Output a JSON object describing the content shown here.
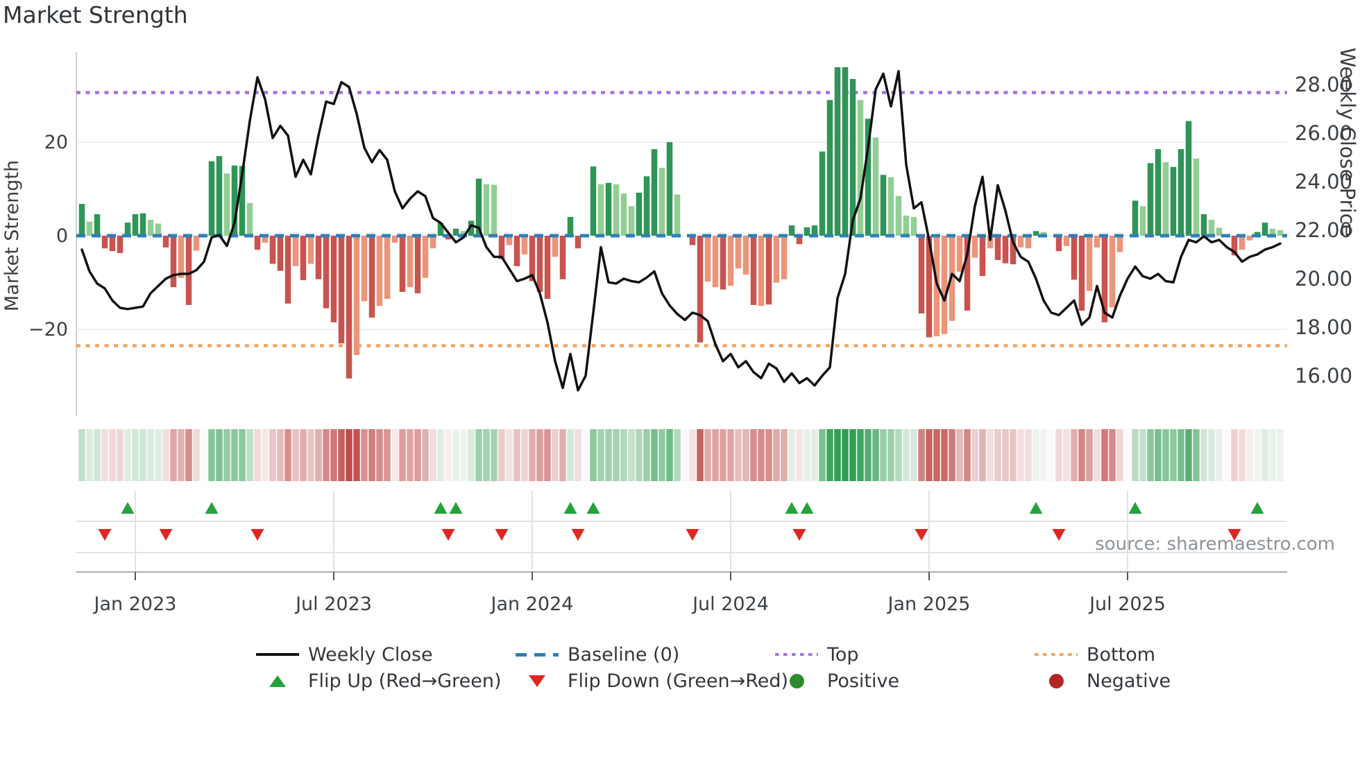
{
  "title": "Market Strength",
  "source": "source: sharemaestro.com",
  "colors": {
    "bar_dark_green": "#2e9556",
    "bar_light_green": "#92ce94",
    "bar_dark_red": "#c9534f",
    "bar_salmon": "#ea9579",
    "baseline_blue": "#2f7fb6",
    "top_purple": "#a76fe2",
    "bottom_orange": "#f2a55f",
    "close_line": "#111111",
    "flip_up_green": "#26a23d",
    "flip_down_red": "#e12622",
    "positive_dot": "#2c8a2c",
    "negative_dot": "#b22623",
    "grid": "#e9ecf2",
    "grid_light": "#dfe2e7",
    "axis_line": "#a6adb5",
    "tick_text": "#3b4046",
    "heat_green_max": "#2f9e53",
    "heat_red_max": "#bf4a48"
  },
  "legend": {
    "row1": [
      {
        "swatch": "line-black",
        "label": "Weekly Close"
      },
      {
        "swatch": "dash-blue",
        "label": "Baseline (0)"
      },
      {
        "swatch": "dot-purple",
        "label": "Top"
      },
      {
        "swatch": "dot-orange",
        "label": "Bottom"
      }
    ],
    "row2": [
      {
        "swatch": "tri-up-green",
        "label": "Flip Up (Red→Green)"
      },
      {
        "swatch": "tri-down-red",
        "label": "Flip Down (Green→Red)"
      },
      {
        "swatch": "circle-green",
        "label": "Positive"
      },
      {
        "swatch": "circle-darkred",
        "label": "Negative"
      }
    ]
  },
  "chart_data": {
    "type": "combo_bar_line",
    "title": "Market Strength",
    "n_weeks": 158,
    "x_ticks": [
      {
        "week": 7,
        "label": "Jan 2023"
      },
      {
        "week": 33,
        "label": "Jul 2023"
      },
      {
        "week": 59,
        "label": "Jan 2024"
      },
      {
        "week": 85,
        "label": "Jul 2024"
      },
      {
        "week": 111,
        "label": "Jan 2025"
      },
      {
        "week": 137,
        "label": "Jul 2025"
      }
    ],
    "left_axis": {
      "label": "Market Strength",
      "tick_values": [
        20,
        0,
        -20
      ],
      "tick_labels": [
        "20",
        "0",
        "−20"
      ],
      "range": [
        -33,
        39
      ]
    },
    "right_axis": {
      "label": "Weekly Close Price",
      "tick_values": [
        28,
        26,
        24,
        22,
        20,
        18,
        16
      ],
      "tick_labels": [
        "28.00",
        "26.00",
        "24.00",
        "22.00",
        "20.00",
        "18.00",
        "16.00"
      ],
      "range": [
        14.9,
        29.5
      ]
    },
    "reference_lines": {
      "baseline": 0,
      "top_strength": 30.6,
      "bottom_strength": -23.5
    },
    "strength_bars": {
      "values": [
        6.8,
        3,
        4.6,
        -2.7,
        -3.3,
        -3.7,
        2.8,
        4.6,
        4.8,
        3.4,
        2.6,
        -2.5,
        -11,
        -9,
        -14.8,
        -3.2,
        0,
        15.9,
        17,
        13.3,
        15,
        14.9,
        7,
        -3,
        -1.5,
        -6,
        -7.5,
        -14.5,
        -6.5,
        -9.5,
        -6,
        -9.3,
        -15.5,
        -18.5,
        -23,
        -30.5,
        -25.5,
        -14,
        -17.5,
        -15,
        -13.5,
        -1.5,
        -12,
        -11,
        -12.3,
        -9,
        -2.7,
        2.7,
        -0.8,
        1.5,
        1,
        3.2,
        12.2,
        11,
        10.9,
        -5,
        -2,
        -6.5,
        -4,
        -9.7,
        -12,
        -13.5,
        -4.5,
        -9.3,
        4,
        -2.7,
        0,
        14.8,
        11,
        11.3,
        11,
        9,
        6.3,
        9.2,
        12.7,
        18.5,
        14.5,
        20,
        8.8,
        0,
        -2,
        -22.8,
        -9.8,
        -11,
        -11.5,
        -10.7,
        -7,
        -8.3,
        -14.8,
        -15,
        -14.7,
        -10,
        -9.3,
        2.2,
        -1.8,
        1.8,
        2.2,
        18,
        29,
        36,
        36,
        33.5,
        29,
        25,
        21,
        13,
        12.5,
        8.5,
        4.3,
        4,
        -16.6,
        -21.7,
        -21.5,
        -21,
        -18.2,
        -7.7,
        -16,
        -4.7,
        -8.6,
        -2.7,
        -5.2,
        -5.9,
        -6.1,
        -2.5,
        -2.7,
        1,
        0.8,
        0,
        -3.3,
        -2.2,
        -9.4,
        -16,
        -11.8,
        -2.5,
        -18.5,
        -15.3,
        -3.5,
        0,
        7.5,
        6.3,
        15.5,
        18.5,
        15.7,
        14.7,
        18.5,
        24.5,
        16.5,
        4.6,
        3.4,
        1.7,
        0,
        -4.2,
        -3,
        -1,
        0.8,
        2.8,
        1.5,
        1.2
      ],
      "shades": [
        "dg",
        "lg",
        "dg",
        "dr",
        "dr",
        "dr",
        "dg",
        "dg",
        "dg",
        "lg",
        "lg",
        "dr",
        "dr",
        "sr",
        "dr",
        "sr",
        "lg",
        "dg",
        "dg",
        "lg",
        "dg",
        "dg",
        "lg",
        "dr",
        "sr",
        "dr",
        "dr",
        "dr",
        "sr",
        "dr",
        "sr",
        "dr",
        "dr",
        "dr",
        "dr",
        "dr",
        "sr",
        "sr",
        "dr",
        "sr",
        "sr",
        "sr",
        "dr",
        "sr",
        "dr",
        "sr",
        "sr",
        "dg",
        "dr",
        "dg",
        "lg",
        "dg",
        "dg",
        "lg",
        "lg",
        "dr",
        "sr",
        "dr",
        "sr",
        "dr",
        "dr",
        "dr",
        "sr",
        "dr",
        "dg",
        "dr",
        "lg",
        "dg",
        "lg",
        "dg",
        "lg",
        "lg",
        "lg",
        "dg",
        "dg",
        "dg",
        "lg",
        "dg",
        "lg",
        "lg",
        "dr",
        "dr",
        "sr",
        "sr",
        "dr",
        "sr",
        "sr",
        "sr",
        "dr",
        "sr",
        "dr",
        "sr",
        "sr",
        "dg",
        "dr",
        "dg",
        "dg",
        "dg",
        "dg",
        "dg",
        "dg",
        "dg",
        "lg",
        "dg",
        "lg",
        "dg",
        "lg",
        "lg",
        "lg",
        "lg",
        "dr",
        "dr",
        "sr",
        "sr",
        "sr",
        "sr",
        "dr",
        "sr",
        "dr",
        "sr",
        "dr",
        "dr",
        "dr",
        "sr",
        "sr",
        "dg",
        "lg",
        "lg",
        "dr",
        "sr",
        "dr",
        "dr",
        "sr",
        "sr",
        "dr",
        "sr",
        "sr",
        "lg",
        "dg",
        "lg",
        "dg",
        "dg",
        "lg",
        "dg",
        "dg",
        "dg",
        "lg",
        "dg",
        "lg",
        "lg",
        "lg",
        "dr",
        "sr",
        "sr",
        "dg",
        "dg",
        "lg",
        "lg"
      ]
    },
    "weekly_close": [
      21.2,
      20.3,
      19.8,
      19.6,
      19.1,
      18.8,
      18.75,
      18.8,
      18.85,
      19.4,
      19.7,
      20,
      20.15,
      20.2,
      20.2,
      20.35,
      20.7,
      21.7,
      21.8,
      21.35,
      22.3,
      24.3,
      26.5,
      28.3,
      27.4,
      25.8,
      26.3,
      25.9,
      24.2,
      24.9,
      24.3,
      25.9,
      27.3,
      27.2,
      28.1,
      27.9,
      26.8,
      25.4,
      24.8,
      25.3,
      24.9,
      23.6,
      22.9,
      23.3,
      23.6,
      23.4,
      22.5,
      22.3,
      21.9,
      21.5,
      21.7,
      22.2,
      22.1,
      21.3,
      20.9,
      20.9,
      20.4,
      19.9,
      20,
      20.15,
      19.4,
      18.2,
      16.6,
      15.5,
      16.9,
      15.4,
      16,
      18.6,
      21.3,
      19.85,
      19.8,
      20,
      19.9,
      19.85,
      20.05,
      20.3,
      19.4,
      18.9,
      18.55,
      18.3,
      18.6,
      18.5,
      18.25,
      17.3,
      16.6,
      16.9,
      16.35,
      16.6,
      16.15,
      15.9,
      16.5,
      16.3,
      15.75,
      16.1,
      15.7,
      15.9,
      15.6,
      16,
      16.35,
      19.2,
      20.2,
      22.4,
      23.3,
      25.4,
      27.8,
      28.45,
      27.1,
      28.55,
      24.7,
      22.9,
      23.15,
      21.6,
      19.8,
      19.1,
      20.2,
      19.9,
      21,
      23,
      24.2,
      21.6,
      23.85,
      22.8,
      21.5,
      20.9,
      20.7,
      20,
      19.1,
      18.6,
      18.5,
      18.8,
      19.1,
      18.1,
      18.4,
      19.7,
      18.6,
      18.4,
      19.3,
      20,
      20.5,
      20.1,
      20,
      20.2,
      19.9,
      19.85,
      20.9,
      21.6,
      21.5,
      21.75,
      21.5,
      21.6,
      21.3,
      21.1,
      20.7,
      20.9,
      21,
      21.2,
      21.3,
      21.45
    ],
    "heatmap": {
      "note": "weekly color strip, intensity mirrors strength bar values",
      "values_ref": "strength_bars.values"
    },
    "flip_up_weeks": [
      6,
      17,
      47,
      49,
      64,
      67,
      93,
      95,
      125,
      138,
      154
    ],
    "flip_down_weeks": [
      3,
      11,
      23,
      48,
      55,
      65,
      80,
      94,
      110,
      128,
      151
    ]
  }
}
